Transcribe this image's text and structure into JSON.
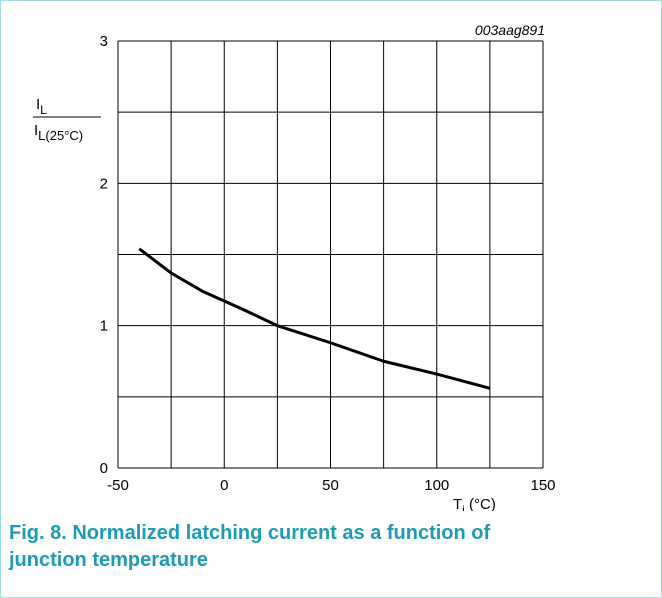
{
  "chart_data": {
    "type": "line",
    "code": "003aag891",
    "ylabel": {
      "num": "I",
      "num_sub": "L",
      "den": "I",
      "den_sub": "L(25°C)"
    },
    "xlabel": {
      "main": "T",
      "sub": "j",
      "unit": " (°C)"
    },
    "x": [
      -40,
      -25,
      -10,
      8,
      25,
      50,
      75,
      100,
      125
    ],
    "series": [
      {
        "color": "#000000",
        "values": [
          1.54,
          1.37,
          1.24,
          1.12,
          1.0,
          0.88,
          0.75,
          0.66,
          0.56
        ]
      }
    ],
    "xlim": [
      -50,
      150
    ],
    "xticks": [
      -50,
      0,
      50,
      100,
      150
    ],
    "ylim": [
      0,
      3
    ],
    "yticks": [
      0,
      1,
      2,
      3
    ],
    "grid": true,
    "xgrid_step": 25,
    "ygrid_step": 0.5,
    "caption": "Fig. 8. Normalized latching current as a function of junction temperature"
  }
}
